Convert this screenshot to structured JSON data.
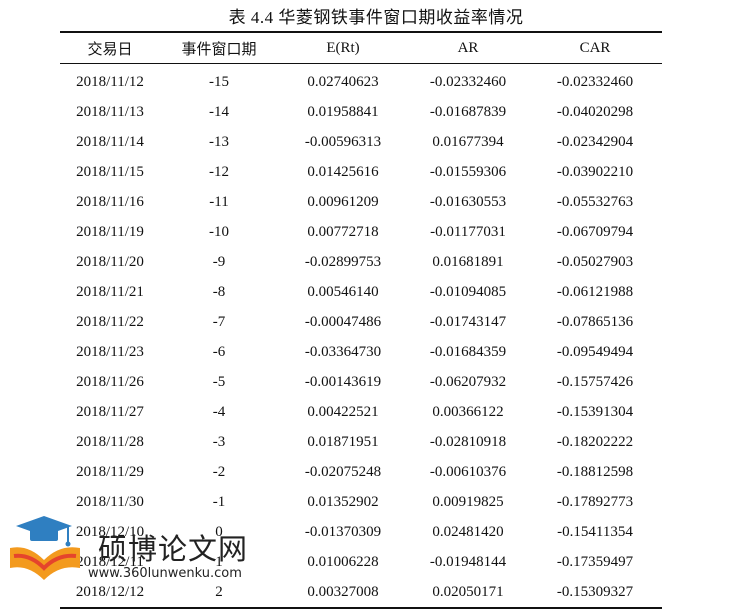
{
  "caption": "表 4.4 华菱钢铁事件窗口期收益率情况",
  "headers": [
    "交易日",
    "事件窗口期",
    "E(Rt)",
    "AR",
    "CAR"
  ],
  "rows": [
    [
      "2018/11/12",
      "-15",
      "0.02740623",
      "-0.02332460",
      "-0.02332460"
    ],
    [
      "2018/11/13",
      "-14",
      "0.01958841",
      "-0.01687839",
      "-0.04020298"
    ],
    [
      "2018/11/14",
      "-13",
      "-0.00596313",
      "0.01677394",
      "-0.02342904"
    ],
    [
      "2018/11/15",
      "-12",
      "0.01425616",
      "-0.01559306",
      "-0.03902210"
    ],
    [
      "2018/11/16",
      "-11",
      "0.00961209",
      "-0.01630553",
      "-0.05532763"
    ],
    [
      "2018/11/19",
      "-10",
      "0.00772718",
      "-0.01177031",
      "-0.06709794"
    ],
    [
      "2018/11/20",
      "-9",
      "-0.02899753",
      "0.01681891",
      "-0.05027903"
    ],
    [
      "2018/11/21",
      "-8",
      "0.00546140",
      "-0.01094085",
      "-0.06121988"
    ],
    [
      "2018/11/22",
      "-7",
      "-0.00047486",
      "-0.01743147",
      "-0.07865136"
    ],
    [
      "2018/11/23",
      "-6",
      "-0.03364730",
      "-0.01684359",
      "-0.09549494"
    ],
    [
      "2018/11/26",
      "-5",
      "-0.00143619",
      "-0.06207932",
      "-0.15757426"
    ],
    [
      "2018/11/27",
      "-4",
      "0.00422521",
      "0.00366122",
      "-0.15391304"
    ],
    [
      "2018/11/28",
      "-3",
      "0.01871951",
      "-0.02810918",
      "-0.18202222"
    ],
    [
      "2018/11/29",
      "-2",
      "-0.02075248",
      "-0.00610376",
      "-0.18812598"
    ],
    [
      "2018/11/30",
      "-1",
      "0.01352902",
      "0.00919825",
      "-0.17892773"
    ],
    [
      "2018/12/10",
      "0",
      "-0.01370309",
      "0.02481420",
      "-0.15411354"
    ],
    [
      "2018/12/11",
      "1",
      "0.01006228",
      "-0.01948144",
      "-0.17359497"
    ],
    [
      "2018/12/12",
      "2",
      "0.00327008",
      "0.02050171",
      "-0.15309327"
    ]
  ],
  "watermark": {
    "title": "硕博论文网",
    "url": "www.360lunwenku.com",
    "logo_icon": "graduation-cap-book-icon",
    "colors": {
      "cap": "#2f7fc1",
      "book_orange": "#f39a1e",
      "book_red": "#e5442c"
    }
  }
}
